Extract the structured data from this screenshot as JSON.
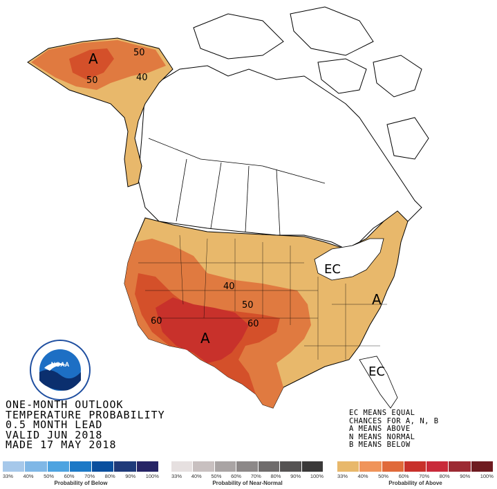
{
  "title": {
    "line1": "ONE-MONTH OUTLOOK",
    "line2": "TEMPERATURE PROBABILITY",
    "line3": "0.5 MONTH LEAD",
    "line4": "VALID JUN 2018",
    "line5": "MADE 17 MAY 2018"
  },
  "legend_notes": {
    "line1": "EC MEANS EQUAL",
    "line2": "CHANCES FOR A, N, B",
    "line3": "A MEANS ABOVE",
    "line4": "N MEANS NORMAL",
    "line5": "B MEANS BELOW"
  },
  "map_labels": {
    "alaska_a": "A",
    "alaska_50": "50",
    "alaska_50b": "50",
    "alaska_40": "40",
    "sw_a": "A",
    "east_a": "A",
    "ec_great_lakes": "EC",
    "ec_southeast": "EC",
    "c40": "40",
    "c50": "50",
    "c60": "60",
    "c60b": "60"
  },
  "scales": {
    "below": {
      "caption": "Probability of Below",
      "ticks": [
        "33%",
        "40%",
        "50%",
        "60%",
        "70%",
        "80%",
        "90%",
        "100%"
      ],
      "colors": [
        "#a6c8ea",
        "#7fb7e6",
        "#4da3e0",
        "#1d79c6",
        "#0a4f9e",
        "#1f3a7a",
        "#262466"
      ]
    },
    "normal": {
      "caption": "Probability of Near-Normal",
      "ticks": [
        "33%",
        "40%",
        "50%",
        "60%",
        "70%",
        "80%",
        "90%",
        "100%"
      ],
      "colors": [
        "#e6e0e0",
        "#c8c0c0",
        "#a9a4a4",
        "#8c8888",
        "#6f6c6c",
        "#555353",
        "#3a3939"
      ]
    },
    "above": {
      "caption": "Probability of Above",
      "ticks": [
        "33%",
        "40%",
        "50%",
        "60%",
        "70%",
        "80%",
        "90%",
        "100%"
      ],
      "colors": [
        "#e8b86b",
        "#f0945a",
        "#e06a3a",
        "#c8312b",
        "#c92a3a",
        "#9c2a33",
        "#6e1b20"
      ]
    }
  },
  "colors": {
    "above_40": "#e8b86b",
    "above_50": "#e07a40",
    "above_60": "#c8312b"
  }
}
